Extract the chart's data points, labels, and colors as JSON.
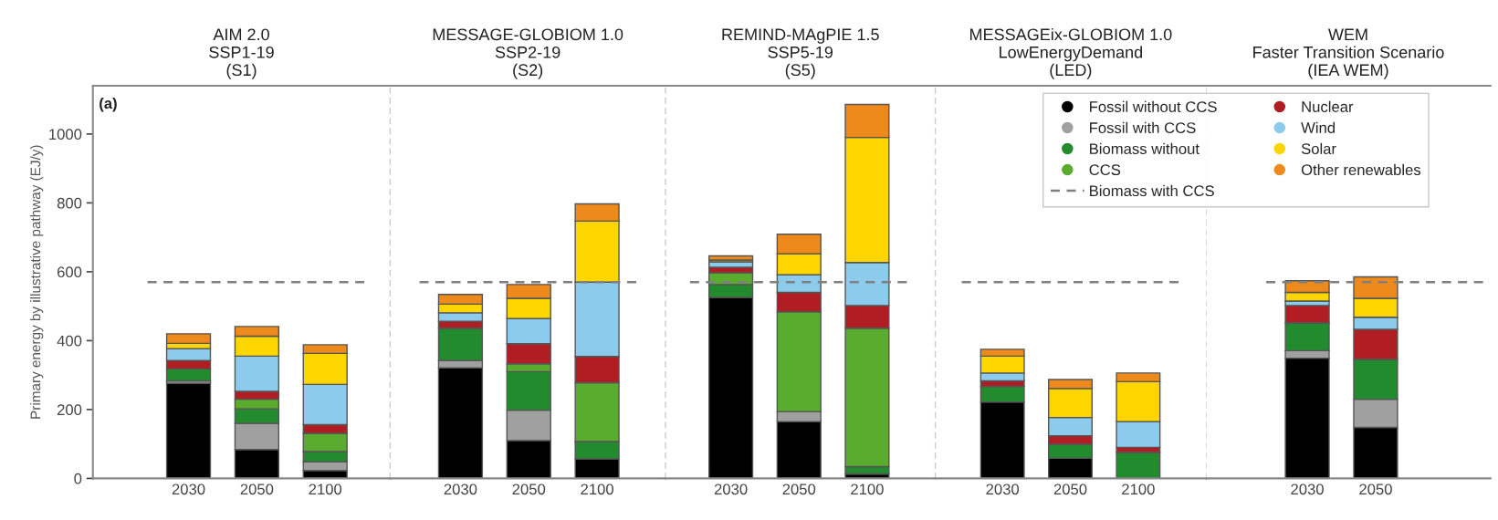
{
  "chart_data": [
    {
      "type": "bar",
      "title": "AIM 2.0\nSSP1-19\n(S1)",
      "ylabel": "Primary energy by illustrative pathway (EJ/y)",
      "annotations": [
        "(a)"
      ],
      "categories": [
        "2030",
        "2050",
        "2100"
      ],
      "stacked": true,
      "ylim": [
        0,
        1140
      ],
      "yticks": [
        0,
        200,
        400,
        600,
        800,
        1000
      ],
      "legend": false,
      "ref_lines": [
        {
          "axis": "y",
          "value": 570,
          "color": "#7f7f7f",
          "line_style": "dashed"
        }
      ],
      "series": [
        {
          "color": "#000000",
          "values": [
            276,
            84,
            23
          ]
        },
        {
          "color": "#a0a0a0",
          "values": [
            7,
            76,
            25
          ]
        },
        {
          "color": "#228b2e",
          "values": [
            35,
            42,
            30
          ]
        },
        {
          "color": "#5aac2e",
          "values": [
            0,
            28,
            53
          ]
        },
        {
          "color": "#b01e23",
          "values": [
            24,
            23,
            25
          ]
        },
        {
          "color": "#8ccbeb",
          "values": [
            35,
            102,
            117
          ]
        },
        {
          "color": "#fdd600",
          "values": [
            15,
            58,
            90
          ]
        },
        {
          "color": "#ee8a1c",
          "values": [
            28,
            28,
            25
          ]
        }
      ]
    },
    {
      "type": "bar",
      "title": "MESSAGE-GLOBIOM 1.0\nSSP2-19\n(S2)",
      "categories": [
        "2030",
        "2050",
        "2100"
      ],
      "stacked": true,
      "ylim": [
        0,
        1140
      ],
      "yticks": [
        0,
        200,
        400,
        600,
        800,
        1000
      ],
      "tick_labels": "x",
      "legend": false,
      "ref_lines": [
        {
          "axis": "y",
          "value": 570,
          "color": "#7f7f7f",
          "line_style": "dashed"
        }
      ],
      "series": [
        {
          "color": "#000000",
          "values": [
            321,
            110,
            57
          ]
        },
        {
          "color": "#a0a0a0",
          "values": [
            21,
            88,
            0
          ]
        },
        {
          "color": "#228b2e",
          "values": [
            94,
            112,
            50
          ]
        },
        {
          "color": "#5aac2e",
          "values": [
            0,
            23,
            171
          ]
        },
        {
          "color": "#b01e23",
          "values": [
            20,
            58,
            76
          ]
        },
        {
          "color": "#8ccbeb",
          "values": [
            25,
            73,
            216
          ]
        },
        {
          "color": "#fdd600",
          "values": [
            25,
            59,
            177
          ]
        },
        {
          "color": "#ee8a1c",
          "values": [
            28,
            40,
            50
          ]
        }
      ]
    },
    {
      "type": "bar",
      "title": "REMIND-MAgPIE 1.5\nSSP5-19\n(S5)",
      "categories": [
        "2030",
        "2050",
        "2100"
      ],
      "stacked": true,
      "ylim": [
        0,
        1140
      ],
      "yticks": [
        0,
        200,
        400,
        600,
        800,
        1000
      ],
      "tick_labels": "x",
      "legend": false,
      "ref_lines": [
        {
          "axis": "y",
          "value": 570,
          "color": "#7f7f7f",
          "line_style": "dashed"
        }
      ],
      "series": [
        {
          "color": "#000000",
          "values": [
            526,
            165,
            13
          ]
        },
        {
          "color": "#a0a0a0",
          "values": [
            0,
            29,
            0
          ]
        },
        {
          "color": "#228b2e",
          "values": [
            37,
            0,
            21
          ]
        },
        {
          "color": "#5aac2e",
          "values": [
            34,
            290,
            402
          ]
        },
        {
          "color": "#b01e23",
          "values": [
            16,
            56,
            66
          ]
        },
        {
          "color": "#8ccbeb",
          "values": [
            16,
            51,
            125
          ]
        },
        {
          "color": "#fdd600",
          "values": [
            5,
            61,
            363
          ]
        },
        {
          "color": "#ee8a1c",
          "values": [
            12,
            57,
            96
          ]
        }
      ]
    },
    {
      "type": "bar",
      "title": "MESSAGEix-GLOBIOM 1.0\nLowEnergyDemand\n(LED)",
      "categories": [
        "2030",
        "2050",
        "2100"
      ],
      "stacked": true,
      "ylim": [
        0,
        1140
      ],
      "yticks": [
        0,
        200,
        400,
        600,
        800,
        1000
      ],
      "tick_labels": "x",
      "legend": "top right",
      "ref_lines": [
        {
          "axis": "y",
          "value": 570,
          "label": "Biomass with CCS",
          "color": "#7f7f7f",
          "line_style": "dashed"
        }
      ],
      "series": [
        {
          "name": "Fossil without CCS",
          "color": "#000000",
          "values": [
            222,
            59,
            0
          ]
        },
        {
          "name": "Fossil with CCS",
          "color": "#a0a0a0",
          "values": [
            0,
            0,
            0
          ]
        },
        {
          "name": "Biomass without",
          "color": "#228b2e",
          "values": [
            45,
            40,
            76
          ]
        },
        {
          "name": "CCS",
          "color": "#5aac2e",
          "values": [
            0,
            0,
            0
          ]
        },
        {
          "name": "Nuclear",
          "color": "#b01e23",
          "values": [
            16,
            25,
            14
          ]
        },
        {
          "name": "Wind",
          "color": "#8ccbeb",
          "values": [
            23,
            53,
            75
          ]
        },
        {
          "name": "Solar",
          "color": "#fdd600",
          "values": [
            49,
            84,
            116
          ]
        },
        {
          "name": "Other renewables",
          "color": "#ee8a1c",
          "values": [
            20,
            26,
            25
          ]
        }
      ]
    },
    {
      "type": "bar",
      "title": "WEM\nFaster Transition Scenario\n(IEA WEM)",
      "categories": [
        "2030",
        "2050"
      ],
      "stacked": true,
      "ylim": [
        0,
        1140
      ],
      "yticks": [
        0,
        200,
        400,
        600,
        800,
        1000
      ],
      "tick_labels": "x",
      "legend": false,
      "ref_lines": [
        {
          "axis": "y",
          "value": 570,
          "color": "#7f7f7f",
          "line_style": "dashed"
        }
      ],
      "series": [
        {
          "color": "#000000",
          "values": [
            349,
            148
          ]
        },
        {
          "color": "#a0a0a0",
          "values": [
            22,
            82
          ]
        },
        {
          "color": "#228b2e",
          "values": [
            81,
            116
          ]
        },
        {
          "color": "#5aac2e",
          "values": [
            0,
            0
          ]
        },
        {
          "color": "#b01e23",
          "values": [
            50,
            87
          ]
        },
        {
          "color": "#8ccbeb",
          "values": [
            13,
            35
          ]
        },
        {
          "color": "#fdd600",
          "values": [
            25,
            55
          ]
        },
        {
          "color": "#ee8a1c",
          "values": [
            34,
            62
          ]
        }
      ]
    }
  ]
}
